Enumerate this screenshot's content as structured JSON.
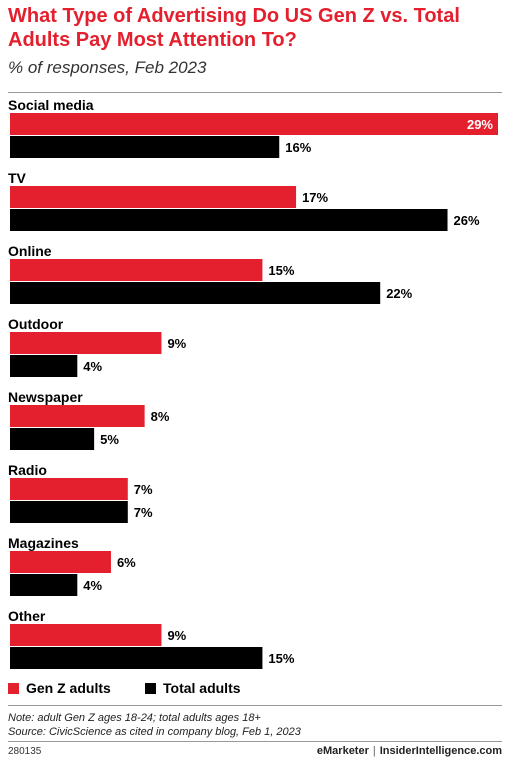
{
  "header": {
    "title": "What Type of Advertising Do US Gen Z vs. Total Adults Pay Most Attention To?",
    "subtitle": "% of responses, Feb 2023"
  },
  "legend": {
    "genz": "Gen Z adults",
    "total": "Total adults"
  },
  "colors": {
    "genz": "#e4202e",
    "total": "#000000",
    "title": "#e4202e"
  },
  "footer": {
    "note": "Note: adult Gen Z ages 18-24; total adults ages 18+",
    "source": "Source: CivicScience as cited in company blog, Feb 1, 2023",
    "chart_id": "280135",
    "brand_left": "eMarketer",
    "brand_sep": "|",
    "brand_right": "InsiderIntelligence.com"
  },
  "chart_data": {
    "type": "bar",
    "orientation": "horizontal",
    "categories": [
      "Social media",
      "TV",
      "Online",
      "Outdoor",
      "Newspaper",
      "Radio",
      "Magazines",
      "Other"
    ],
    "series": [
      {
        "name": "Gen Z adults",
        "values": [
          29,
          17,
          15,
          9,
          8,
          7,
          6,
          9
        ]
      },
      {
        "name": "Total adults",
        "values": [
          16,
          26,
          22,
          4,
          5,
          7,
          4,
          15
        ]
      }
    ],
    "value_suffix": "%",
    "xlim": [
      0,
      29
    ],
    "grid": false,
    "legend_position": "bottom-left"
  }
}
